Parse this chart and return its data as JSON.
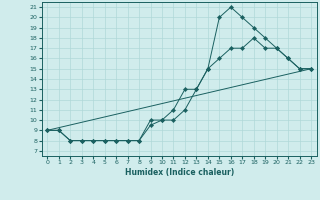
{
  "title": "",
  "xlabel": "Humidex (Indice chaleur)",
  "xlim": [
    -0.5,
    23.5
  ],
  "ylim": [
    6.5,
    21.5
  ],
  "yticks": [
    7,
    8,
    9,
    10,
    11,
    12,
    13,
    14,
    15,
    16,
    17,
    18,
    19,
    20,
    21
  ],
  "xticks": [
    0,
    1,
    2,
    3,
    4,
    5,
    6,
    7,
    8,
    9,
    10,
    11,
    12,
    13,
    14,
    15,
    16,
    17,
    18,
    19,
    20,
    21,
    22,
    23
  ],
  "bg_color": "#d0ecec",
  "line_color": "#1a6060",
  "grid_color": "#b0d8d8",
  "line1_x": [
    0,
    1,
    2,
    3,
    4,
    5,
    6,
    7,
    8,
    9,
    10,
    11,
    12,
    13,
    14,
    15,
    16,
    17,
    18,
    19,
    20,
    21,
    22,
    23
  ],
  "line1_y": [
    9,
    9,
    8,
    8,
    8,
    8,
    8,
    8,
    8,
    9.5,
    10,
    11,
    13,
    13,
    15,
    20,
    21,
    20,
    19,
    18,
    17,
    16,
    15,
    15
  ],
  "line2_x": [
    0,
    1,
    2,
    3,
    4,
    5,
    6,
    7,
    8,
    9,
    10,
    11,
    12,
    13,
    14,
    15,
    16,
    17,
    18,
    19,
    20,
    21,
    22,
    23
  ],
  "line2_y": [
    9,
    9,
    8,
    8,
    8,
    8,
    8,
    8,
    8,
    10,
    10,
    10,
    11,
    13,
    15,
    16,
    17,
    17,
    18,
    17,
    17,
    16,
    15,
    15
  ],
  "line3_x": [
    0,
    23
  ],
  "line3_y": [
    9,
    15
  ]
}
